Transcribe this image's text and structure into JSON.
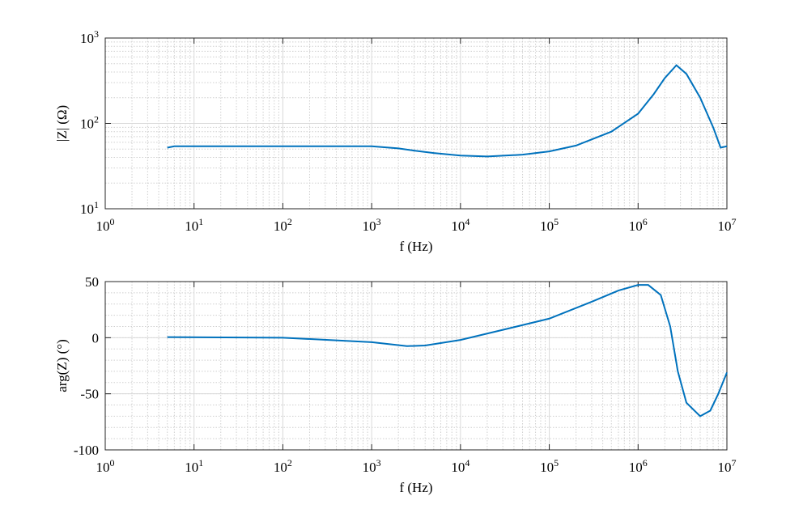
{
  "chart_data": [
    {
      "type": "line",
      "xlabel": "f (Hz)",
      "ylabel": "|Z| (Ω)",
      "xscale": "log",
      "yscale": "log",
      "grid": true,
      "color": "#0072bd",
      "xlim": [
        1,
        10000000
      ],
      "ylim": [
        10,
        1000
      ],
      "xticks": [
        {
          "value": 1,
          "label": "10^0"
        },
        {
          "value": 10,
          "label": "10^1"
        },
        {
          "value": 100,
          "label": "10^2"
        },
        {
          "value": 1000,
          "label": "10^3"
        },
        {
          "value": 10000,
          "label": "10^4"
        },
        {
          "value": 100000,
          "label": "10^5"
        },
        {
          "value": 1000000,
          "label": "10^6"
        },
        {
          "value": 10000000,
          "label": "10^7"
        }
      ],
      "yticks": [
        {
          "value": 10,
          "label": "10^1"
        },
        {
          "value": 100,
          "label": "10^2"
        },
        {
          "value": 1000,
          "label": "10^3"
        }
      ],
      "x": [
        5,
        6,
        10,
        100,
        1000,
        2000,
        3000,
        5000,
        10000,
        20000,
        50000,
        100000,
        200000,
        500000,
        1000000,
        1500000,
        2000000,
        2700000,
        3500000,
        5000000,
        7000000,
        8500000,
        10000000
      ],
      "values": [
        52,
        54,
        54,
        54,
        54,
        51,
        48,
        45,
        42,
        41,
        43,
        47,
        55,
        80,
        130,
        220,
        340,
        480,
        380,
        200,
        90,
        52,
        54
      ]
    },
    {
      "type": "line",
      "xlabel": "f (Hz)",
      "ylabel": "arg(Z) (°)",
      "xscale": "log",
      "yscale": "linear",
      "grid": true,
      "color": "#0072bd",
      "xlim": [
        1,
        10000000
      ],
      "ylim": [
        -100,
        50
      ],
      "xticks": [
        {
          "value": 1,
          "label": "10^0"
        },
        {
          "value": 10,
          "label": "10^1"
        },
        {
          "value": 100,
          "label": "10^2"
        },
        {
          "value": 1000,
          "label": "10^3"
        },
        {
          "value": 10000,
          "label": "10^4"
        },
        {
          "value": 100000,
          "label": "10^5"
        },
        {
          "value": 1000000,
          "label": "10^6"
        },
        {
          "value": 10000000,
          "label": "10^7"
        }
      ],
      "yticks": [
        -100,
        -50,
        0,
        50
      ],
      "x": [
        5,
        100,
        1000,
        2500,
        4000,
        10000,
        30000,
        100000,
        300000,
        600000,
        1000000,
        1300000,
        1800000,
        2300000,
        2800000,
        3500000,
        5000000,
        6500000,
        8000000,
        10000000
      ],
      "values": [
        0.5,
        0,
        -4,
        -7.5,
        -7,
        -2,
        7,
        17,
        32,
        42,
        47,
        47,
        38,
        10,
        -30,
        -58,
        -70,
        -65,
        -50,
        -31
      ]
    }
  ]
}
